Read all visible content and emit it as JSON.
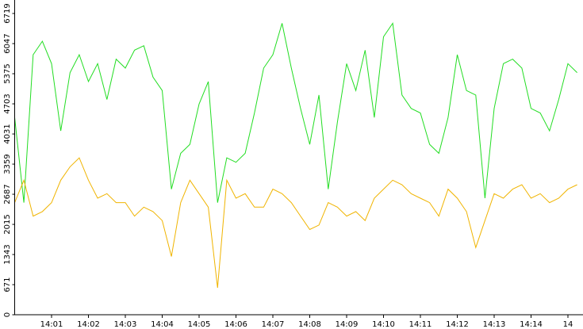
{
  "chart_data": {
    "type": "line",
    "categories": [
      null,
      null,
      null,
      null,
      "14:01",
      null,
      null,
      null,
      "14:02",
      null,
      null,
      null,
      "14:03",
      null,
      null,
      null,
      "14:04",
      null,
      null,
      null,
      "14:05",
      null,
      null,
      null,
      "14:06",
      null,
      null,
      null,
      "14:07",
      null,
      null,
      null,
      "14:08",
      null,
      null,
      null,
      "14:09",
      null,
      null,
      null,
      "14:10",
      null,
      null,
      null,
      "14:11",
      null,
      null,
      null,
      "14:12",
      null,
      null,
      null,
      "14:13",
      null,
      null,
      null,
      "14:14",
      null,
      null,
      null,
      "14",
      null
    ],
    "series": [
      {
        "color": "#22dd22",
        "values": [
          4400,
          2500,
          5800,
          6100,
          5600,
          4100,
          5400,
          5800,
          5200,
          5600,
          4800,
          5700,
          5500,
          5900,
          6000,
          5300,
          5000,
          2800,
          3600,
          3800,
          4700,
          5200,
          2500,
          3500,
          3400,
          3600,
          4500,
          5500,
          5800,
          6500,
          5500,
          4600,
          3800,
          4900,
          2800,
          4300,
          5600,
          5000,
          5900,
          4400,
          6200,
          6500,
          4900,
          4600,
          4500,
          3800,
          3600,
          4400,
          5800,
          5000,
          4900,
          2600,
          4600,
          5600,
          5700,
          5500,
          4600,
          4500,
          4100,
          4800,
          5600,
          5400
        ]
      },
      {
        "color": "#f0b400",
        "values": [
          2500,
          3000,
          2200,
          2300,
          2500,
          3000,
          3300,
          3500,
          3000,
          2600,
          2700,
          2500,
          2500,
          2200,
          2400,
          2300,
          2100,
          1300,
          2500,
          3000,
          2700,
          2400,
          600,
          3000,
          2600,
          2700,
          2400,
          2400,
          2800,
          2700,
          2500,
          2200,
          1900,
          2000,
          2500,
          2400,
          2200,
          2300,
          2100,
          2600,
          2800,
          3000,
          2900,
          2700,
          2600,
          2500,
          2200,
          2800,
          2600,
          2300,
          1500,
          2100,
          2700,
          2600,
          2800,
          2900,
          2600,
          2700,
          2500,
          2600,
          2800,
          2900
        ]
      }
    ],
    "ylim": [
      0,
      6719
    ],
    "yticks": [
      0,
      671,
      1343,
      2015,
      2687,
      3359,
      4031,
      4703,
      5375,
      6047,
      6719
    ]
  }
}
